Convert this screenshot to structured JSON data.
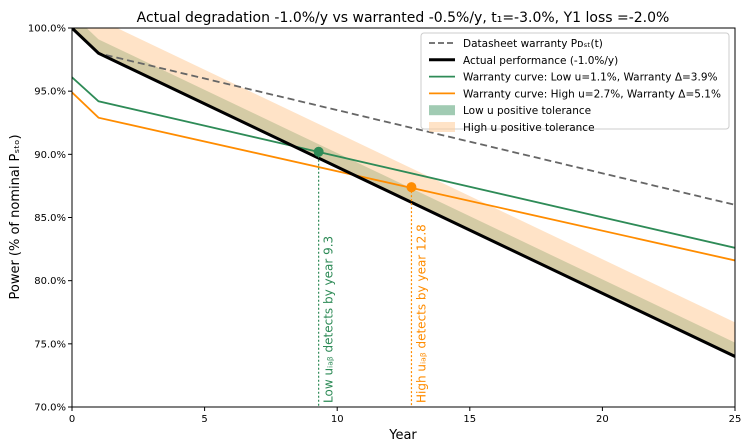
{
  "chart_data": {
    "type": "line",
    "title": "Actual degradation -1.0%/y vs warranted -0.5%/y, t₁=-3.0%, Y1 loss =-2.0%",
    "xlabel": "Year",
    "ylabel": "Power (% of nominal Pₛₜₒ)",
    "xlim": [
      0,
      25
    ],
    "ylim": [
      70,
      100
    ],
    "x_ticks": [
      0,
      5,
      10,
      15,
      20,
      25
    ],
    "y_ticks": [
      70,
      75,
      80,
      85,
      90,
      95,
      100
    ],
    "x_tick_labels": [
      "0",
      "5",
      "10",
      "15",
      "20",
      "25"
    ],
    "y_tick_labels": [
      "70.0%",
      "75.0%",
      "80.0%",
      "85.0%",
      "90.0%",
      "95.0%",
      "100.0%"
    ],
    "grid": false,
    "legend_position": "top-right",
    "series": [
      {
        "name": "Datasheet warranty Pᴅₛₜ(t)",
        "style": "dashed",
        "color": "#666666",
        "x": [
          0,
          1,
          25
        ],
        "y": [
          100,
          98,
          86
        ]
      },
      {
        "name": "Actual performance (-1.0%/y)",
        "style": "solid",
        "color": "#000000",
        "x": [
          0,
          1,
          25
        ],
        "y": [
          100,
          98,
          74
        ]
      },
      {
        "name": "Warranty curve: Low u=1.1%,  Warranty Δ=3.9%",
        "style": "solid",
        "color": "#2e8b57",
        "x": [
          0,
          1,
          25
        ],
        "y": [
          96.1,
          94.2,
          82.6
        ]
      },
      {
        "name": "Warranty curve: High u=2.7%, Warranty Δ=5.1%",
        "style": "solid",
        "color": "#ff8c00",
        "x": [
          0,
          1,
          25
        ],
        "y": [
          94.9,
          92.9,
          81.6
        ]
      }
    ],
    "bands": [
      {
        "name": "Low u positive tolerance",
        "color": "#2e8b57",
        "opacity": 0.45,
        "x": [
          0,
          1,
          25
        ],
        "lower": [
          100,
          98,
          74
        ],
        "upper": [
          101.1,
          99.1,
          75.1
        ]
      },
      {
        "name": "High u positive tolerance",
        "color": "#ffcc99",
        "opacity": 0.55,
        "x": [
          0,
          1,
          25
        ],
        "lower": [
          100,
          98,
          74
        ],
        "upper": [
          102.7,
          100.7,
          76.7
        ]
      }
    ],
    "markers": [
      {
        "x": 9.3,
        "y": 90.2,
        "color": "#2e8b57",
        "label": "Low uᵢₐᵦ detects by year 9.3"
      },
      {
        "x": 12.8,
        "y": 87.4,
        "color": "#ff8c00",
        "label": "High uᵢₐᵦ detects by year 12.8"
      }
    ]
  }
}
